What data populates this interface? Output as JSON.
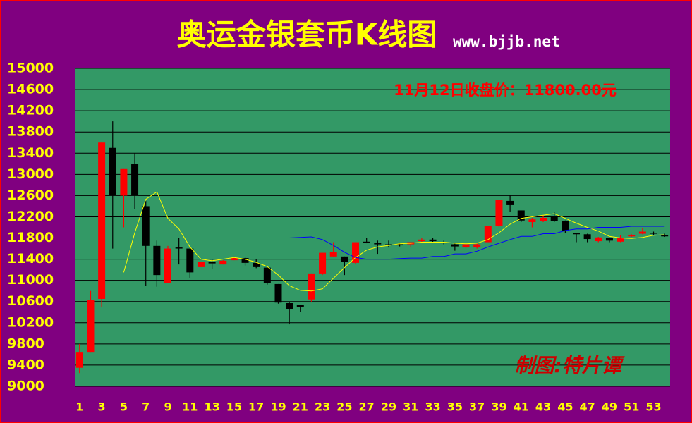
{
  "chart_data": {
    "type": "candlestick",
    "title": "奥运金银套币K线图",
    "subtitle": "www.bjjb.net",
    "annotation": "11月12日收盘价：11800.00元",
    "credit": "制图:特片谭",
    "categories": [
      1,
      null,
      3,
      null,
      5,
      null,
      7,
      null,
      9,
      null,
      11,
      null,
      13,
      null,
      15,
      null,
      17,
      null,
      19,
      null,
      21,
      null,
      23,
      null,
      25,
      null,
      27,
      null,
      29,
      null,
      31,
      null,
      33,
      null,
      35,
      null,
      37,
      null,
      39,
      null,
      41,
      null,
      43,
      null,
      45,
      null,
      47,
      null,
      49,
      null,
      51,
      null,
      53,
      null
    ],
    "open": [
      9350,
      9650,
      10650,
      13500,
      12600,
      13200,
      12400,
      11650,
      10950,
      11620,
      11600,
      11250,
      11350,
      11300,
      11380,
      11420,
      11330,
      11240,
      10930,
      10570,
      10530,
      10640,
      11130,
      11450,
      11450,
      11330,
      11730,
      11700,
      11680,
      11680,
      11680,
      11740,
      11770,
      11720,
      11680,
      11620,
      11620,
      11720,
      12030,
      12500,
      12320,
      12100,
      12120,
      12200,
      12120,
      11900,
      11870,
      11740,
      11800,
      11730,
      11830,
      11880,
      11900,
      11860
    ],
    "high": [
      9800,
      10800,
      13600,
      14000,
      13100,
      13400,
      12500,
      11750,
      11650,
      11800,
      11600,
      11350,
      11400,
      11380,
      11450,
      11430,
      11400,
      11240,
      10930,
      10600,
      10530,
      11130,
      11520,
      11720,
      11450,
      11720,
      11800,
      11750,
      11750,
      11700,
      11720,
      11800,
      11800,
      11750,
      11700,
      11700,
      11700,
      12030,
      12520,
      12600,
      12320,
      12180,
      12230,
      12300,
      12130,
      11900,
      11880,
      11820,
      11810,
      11850,
      11870,
      11990,
      11920,
      11880
    ],
    "low": [
      9250,
      9650,
      10500,
      11600,
      12000,
      12350,
      10900,
      10880,
      10950,
      11300,
      11050,
      11250,
      11220,
      11300,
      11380,
      11280,
      11230,
      10920,
      10560,
      10170,
      10400,
      10600,
      11100,
      11450,
      11100,
      11300,
      11700,
      11500,
      11620,
      11640,
      11620,
      11720,
      11720,
      11680,
      11560,
      11600,
      11600,
      11720,
      12000,
      12300,
      12100,
      12000,
      12100,
      12100,
      11900,
      11720,
      11720,
      11720,
      11720,
      11720,
      11820,
      11870,
      11860,
      11820
    ],
    "close": [
      9650,
      10630,
      13600,
      12600,
      13100,
      12600,
      11650,
      11100,
      11600,
      11600,
      11150,
      11350,
      11320,
      11370,
      11420,
      11330,
      11250,
      10950,
      10580,
      10450,
      10500,
      11130,
      11520,
      11530,
      11350,
      11720,
      11710,
      11680,
      11660,
      11660,
      11720,
      11770,
      11740,
      11700,
      11640,
      11680,
      11680,
      12030,
      12520,
      12420,
      12130,
      12150,
      12180,
      12120,
      11930,
      11870,
      11780,
      11810,
      11750,
      11800,
      11860,
      11920,
      11880,
      11830
    ],
    "up_color": "#ff0000",
    "down_color": "#000000",
    "moving_averages": [
      {
        "color": "#ffff00",
        "values": [
          null,
          null,
          null,
          null,
          11150,
          11900,
          12530,
          12670,
          12170,
          11970,
          11630,
          11400,
          11370,
          11400,
          11430,
          11400,
          11340,
          11260,
          11100,
          10900,
          10810,
          10800,
          10840,
          11040,
          11240,
          11430,
          11570,
          11630,
          11660,
          11690,
          11700,
          11720,
          11720,
          11720,
          11700,
          11690,
          11700,
          11770,
          11900,
          12060,
          12170,
          12200,
          12230,
          12260,
          12170,
          12080,
          12000,
          11930,
          11830,
          11800,
          11790,
          11810,
          11850,
          11860
        ]
      },
      {
        "color": "#0000ff",
        "values": [
          null,
          null,
          null,
          null,
          null,
          null,
          null,
          null,
          null,
          null,
          null,
          null,
          null,
          null,
          null,
          null,
          null,
          null,
          null,
          11800,
          11810,
          11820,
          11770,
          11660,
          11530,
          11430,
          11400,
          11400,
          11400,
          11410,
          11420,
          11420,
          11450,
          11450,
          11500,
          11500,
          11550,
          11630,
          11700,
          11770,
          11830,
          11830,
          11880,
          11880,
          11940,
          11970,
          11970,
          12000,
          12000,
          12000,
          12020,
          12020,
          12020,
          12020
        ]
      }
    ],
    "ylim": [
      9000,
      15000
    ],
    "yticks": [
      9000,
      9400,
      9800,
      10200,
      10600,
      11000,
      11400,
      11800,
      12200,
      12600,
      13000,
      13400,
      13800,
      14200,
      14600,
      15000
    ],
    "grid": true
  }
}
